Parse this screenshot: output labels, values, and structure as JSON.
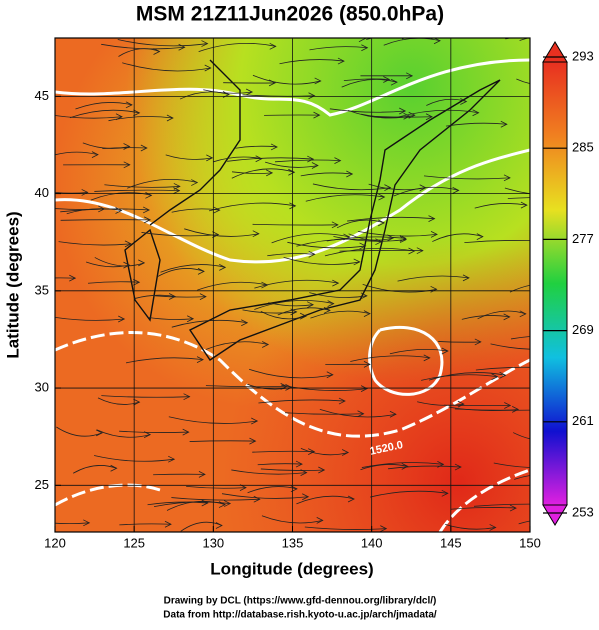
{
  "chart_data": {
    "type": "map",
    "title": "MSM 21Z11Jun2026 (850.0hPa)",
    "xlabel": "Longitude (degrees)",
    "ylabel": "Latitude  (degrees)",
    "xlim": [
      120,
      150
    ],
    "xticks": [
      120,
      125,
      130,
      135,
      140,
      145,
      150
    ],
    "ylim": [
      22.6,
      48
    ],
    "yticks": [
      25,
      30,
      35,
      40,
      45
    ],
    "grid": true,
    "contour_labels": [
      "1520.0"
    ],
    "colorbar": {
      "lim": [
        253,
        293
      ],
      "ticks": [
        253,
        261,
        269,
        277,
        285,
        293
      ],
      "colors": [
        "#e020e0",
        "#1010d0",
        "#10c0e0",
        "#20d040",
        "#e8e020",
        "#f08020",
        "#e83020"
      ]
    },
    "footer": [
      "Drawing by DCL (https://www.gfd-dennou.org/library/dcl/)",
      "Data from http://database.rish.kyoto-u.ac.jp/arch/jmadata/"
    ]
  }
}
